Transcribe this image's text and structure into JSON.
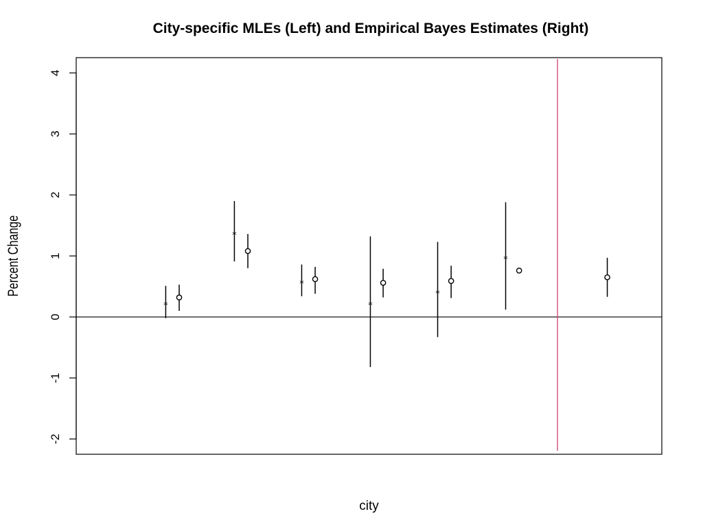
{
  "chart_data": {
    "type": "scatter",
    "title": "City-specific MLEs (Left) and Empirical Bayes Estimates (Right)",
    "xlabel": "city",
    "ylabel": "Percent Change",
    "ylim": [
      -2.25,
      4.25
    ],
    "xlim": [
      0,
      8.7
    ],
    "y_ticks": [
      -2,
      -1,
      0,
      1,
      2,
      3,
      4
    ],
    "y_tick_labels": [
      "-2",
      "-1",
      "0",
      "1",
      "2",
      "3",
      "4"
    ],
    "reference_lines": [
      {
        "orientation": "horizontal",
        "value": 0,
        "color": "#000000"
      },
      {
        "orientation": "vertical",
        "value": 7.15,
        "color": "#d0306a"
      }
    ],
    "series": [
      {
        "marker": "*",
        "points": [
          {
            "x": 1.33,
            "y": 0.22,
            "lower": -0.02,
            "upper": 0.51
          },
          {
            "x": 2.35,
            "y": 1.37,
            "lower": 0.91,
            "upper": 1.9
          },
          {
            "x": 3.35,
            "y": 0.57,
            "lower": 0.34,
            "upper": 0.86
          },
          {
            "x": 4.37,
            "y": 0.22,
            "lower": -0.82,
            "upper": 1.32
          },
          {
            "x": 5.37,
            "y": 0.41,
            "lower": -0.33,
            "upper": 1.23
          },
          {
            "x": 6.38,
            "y": 0.97,
            "lower": 0.12,
            "upper": 1.88
          }
        ]
      },
      {
        "marker": "o",
        "points": [
          {
            "x": 1.53,
            "y": 0.32,
            "lower": 0.1,
            "upper": 0.53
          },
          {
            "x": 2.55,
            "y": 1.08,
            "lower": 0.8,
            "upper": 1.36
          },
          {
            "x": 3.55,
            "y": 0.62,
            "lower": 0.38,
            "upper": 0.82
          },
          {
            "x": 4.56,
            "y": 0.56,
            "lower": 0.32,
            "upper": 0.79
          },
          {
            "x": 5.57,
            "y": 0.59,
            "lower": 0.31,
            "upper": 0.84
          },
          {
            "x": 6.58,
            "y": 0.76,
            "lower": null,
            "upper": null
          },
          {
            "x": 7.89,
            "y": 0.65,
            "lower": 0.33,
            "upper": 0.97
          }
        ]
      }
    ]
  }
}
